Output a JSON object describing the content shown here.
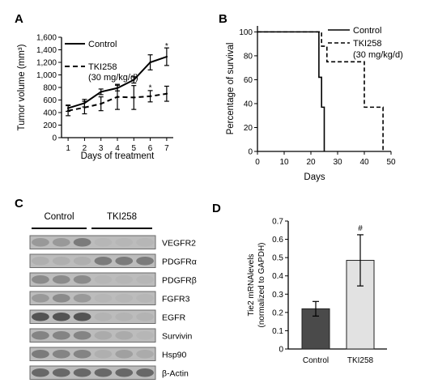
{
  "panels": {
    "A": {
      "letter": "A"
    },
    "B": {
      "letter": "B"
    },
    "C": {
      "letter": "C"
    },
    "D": {
      "letter": "D"
    }
  },
  "chart_data": [
    {
      "panel": "A",
      "type": "line",
      "xlabel": "Days of treatment",
      "ylabel": "Tumor volume (mm³)",
      "x": [
        1,
        2,
        3,
        4,
        5,
        6,
        7
      ],
      "x_tick_labels": [
        "1",
        "2",
        "3",
        "4",
        "5",
        "6",
        "7"
      ],
      "xlim": [
        0.6,
        7.4
      ],
      "ylim": [
        0,
        1600
      ],
      "y_ticks": [
        0,
        200,
        400,
        600,
        800,
        1000,
        1200,
        1400,
        1600
      ],
      "y_tick_labels": [
        "0",
        "200",
        "400",
        "600",
        "800",
        "1,000",
        "1,200",
        "1,400",
        "1,600"
      ],
      "series": [
        {
          "name": "Control",
          "style": "solid",
          "color": "#000000",
          "values": [
            470,
            550,
            730,
            790,
            920,
            1200,
            1290
          ],
          "errors": [
            50,
            60,
            45,
            45,
            50,
            120,
            140
          ]
        },
        {
          "name": "TKI258 (30 mg/kg/d)",
          "name_lines": [
            "TKI258",
            "(30 mg/kg/d)"
          ],
          "style": "dashed",
          "color": "#000000",
          "values": [
            430,
            480,
            540,
            650,
            640,
            660,
            700
          ],
          "errors": [
            80,
            100,
            110,
            200,
            190,
            90,
            120
          ]
        }
      ],
      "annotations": [
        {
          "text": "*",
          "x": 6,
          "y": 830
        },
        {
          "text": "*",
          "x": 7,
          "y": 1500
        }
      ],
      "legend_position": "top-left",
      "grid": false
    },
    {
      "panel": "B",
      "type": "line",
      "xlabel": "Days",
      "ylabel": "Percentage of survival",
      "xlim": [
        0,
        50
      ],
      "ylim": [
        0,
        105
      ],
      "x_ticks": [
        0,
        10,
        20,
        30,
        40,
        50
      ],
      "x_tick_labels": [
        "0",
        "10",
        "20",
        "30",
        "40",
        "50"
      ],
      "y_ticks": [
        0,
        20,
        40,
        60,
        80,
        100
      ],
      "y_tick_labels": [
        "0",
        "20",
        "40",
        "60",
        "80",
        "100"
      ],
      "series": [
        {
          "name": "Control",
          "style": "solid",
          "color": "#000000",
          "x": [
            0,
            23,
            23,
            24,
            24,
            25,
            25
          ],
          "values": [
            100,
            100,
            62,
            62,
            37,
            37,
            0
          ]
        },
        {
          "name": "TKI258 (30 mg/kg/d)",
          "name_lines": [
            "TKI258",
            "(30 mg/kg/d)"
          ],
          "style": "dashed",
          "color": "#000000",
          "x": [
            0,
            24,
            24,
            26,
            26,
            40,
            40,
            47,
            47
          ],
          "values": [
            100,
            100,
            88,
            88,
            75,
            75,
            37,
            37,
            0
          ]
        }
      ],
      "legend_position": "top-right",
      "grid": false
    },
    {
      "panel": "C",
      "type": "table",
      "group_labels": [
        "Control",
        "TKI258"
      ],
      "lanes_per_group": 3,
      "rows": [
        {
          "label": "VEGFR2",
          "intensity": [
            0.35,
            0.35,
            0.55,
            0.05,
            0.05,
            0.05
          ]
        },
        {
          "label": "PDGFRα",
          "intensity": [
            0.15,
            0.15,
            0.15,
            0.55,
            0.55,
            0.55
          ]
        },
        {
          "label": "PDGFRβ",
          "intensity": [
            0.45,
            0.45,
            0.45,
            0.05,
            0.05,
            0.05
          ]
        },
        {
          "label": "FGFR3",
          "intensity": [
            0.35,
            0.45,
            0.35,
            0.05,
            0.05,
            0.05
          ]
        },
        {
          "label": "EGFR",
          "intensity": [
            0.75,
            0.75,
            0.75,
            0.1,
            0.1,
            0.1
          ]
        },
        {
          "label": "Survivin",
          "intensity": [
            0.5,
            0.5,
            0.5,
            0.2,
            0.2,
            0.05
          ]
        },
        {
          "label": "Hsp90",
          "intensity": [
            0.55,
            0.5,
            0.5,
            0.15,
            0.3,
            0.2
          ]
        },
        {
          "label": "β-Actin",
          "intensity": [
            0.65,
            0.65,
            0.65,
            0.65,
            0.65,
            0.65
          ]
        }
      ]
    },
    {
      "panel": "D",
      "type": "bar",
      "ylabel_lines": [
        "Tie2 mRNAlevels",
        "(normalized to GAPDH)"
      ],
      "categories": [
        "Control",
        "TKI258"
      ],
      "values": [
        0.22,
        0.485
      ],
      "errors": [
        0.04,
        0.14
      ],
      "colors": [
        "#4a4a4a",
        "#e2e2e2"
      ],
      "ylim": [
        0,
        0.7
      ],
      "y_ticks": [
        0,
        0.1,
        0.2,
        0.3,
        0.4,
        0.5,
        0.6,
        0.7
      ],
      "y_tick_labels": [
        "0",
        "0.1",
        "0.2",
        "0.3",
        "0.4",
        "0.5",
        "0.6",
        "0.7"
      ],
      "annotations": [
        {
          "text": "#",
          "category": "TKI258",
          "y": 0.67
        }
      ],
      "grid": false
    }
  ]
}
